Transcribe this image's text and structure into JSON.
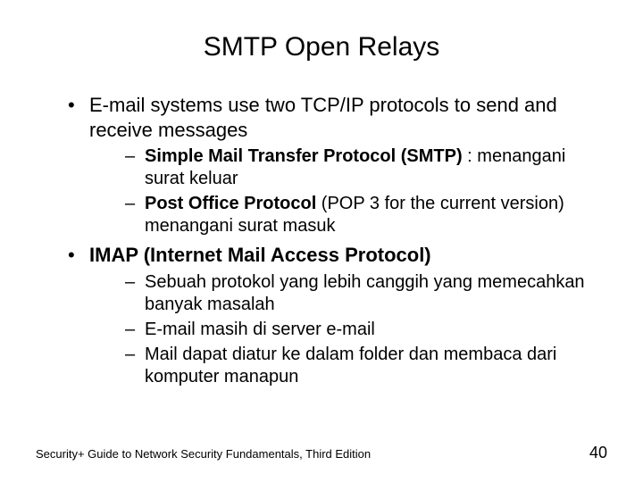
{
  "title": "SMTP Open Relays",
  "bullets": {
    "b1": "E-mail systems use two TCP/IP protocols to send and receive messages",
    "b1a_bold": "Simple Mail Transfer Protocol (SMTP)",
    "b1a_rest": " : menangani surat keluar",
    "b1b_bold": "Post Office Protocol",
    "b1b_rest": " (POP 3 for the current version) menangani surat masuk",
    "b2_bold": "IMAP (Internet Mail Access Protocol)",
    "b2a": "Sebuah protokol yang lebih canggih yang memecahkan banyak masalah",
    "b2b": "E-mail masih di server e-mail",
    "b2c": "Mail dapat diatur ke dalam folder dan membaca dari komputer manapun"
  },
  "footer": {
    "source": "Security+ Guide to Network Security Fundamentals, Third Edition",
    "page": "40"
  }
}
